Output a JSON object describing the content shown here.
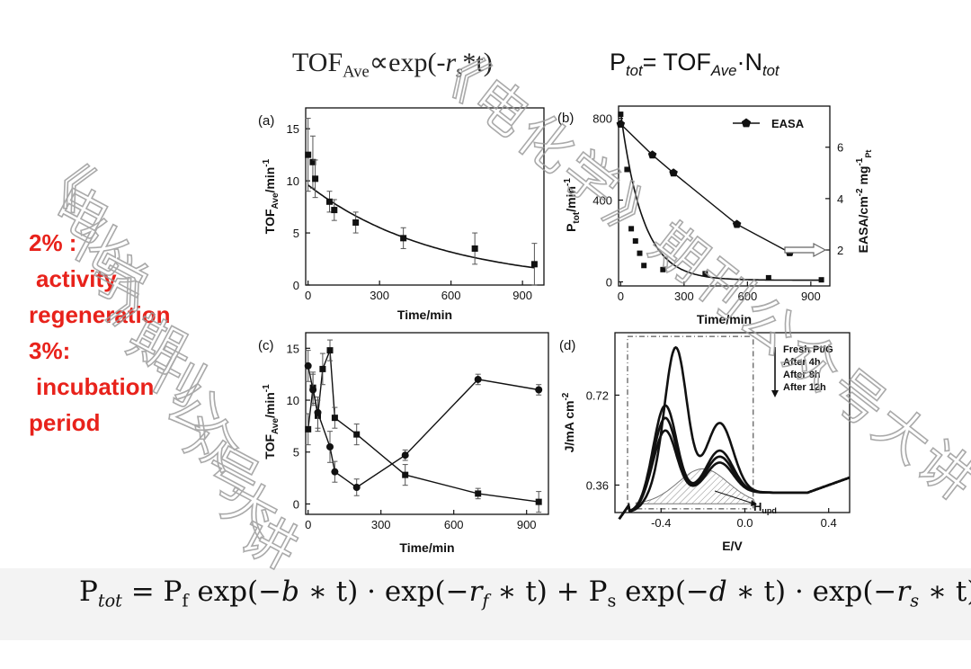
{
  "equations": {
    "top_left": {
      "base": "TOF",
      "sub": "Ave",
      "rest_a": "∝exp(-",
      "rs_r": "r",
      "rs_s": "s",
      "rest_b": "*t)"
    },
    "top_right": {
      "p": "P",
      "p_sub": "tot",
      "eq": "= TOF",
      "tof_sub": "Ave",
      "dot": "·N",
      "n_sub": "tot"
    },
    "bottom": "P_tot = P_f exp(−b * t) · exp(−r_f * t) + P_s exp(−d * t) · exp(−r_s * t)",
    "bottom_parts": {
      "p": "P",
      "p_sub": "tot",
      "eq": " = P",
      "pf_sub": "f",
      "exp1": " exp(−",
      "b": "b",
      "t1": " ∗ t) · exp(−",
      "rf": "r",
      "rf_sub": "f",
      "t2": " ∗ t) + P",
      "ps_sub": "s",
      "exp3": " exp(−",
      "d": "d",
      "t3": " ∗ t) · exp(−",
      "rs": "r",
      "rs_sub": "s",
      "t4": " ∗ t)"
    }
  },
  "side_notes": {
    "line1": "2% :",
    "line2": "activity",
    "line3": "regeneration",
    "line4": "3%:",
    "line5": "incubation",
    "line6": "period"
  },
  "watermark": {
    "text": "《电化学》期刊公众号大讲堂"
  },
  "chart_data": [
    {
      "panel": "(a)",
      "type": "scatter",
      "xlabel": "Time/min",
      "ylabel": "TOF",
      "ylabel_sub": "Ave",
      "ylabel_tail": "/min",
      "ylabel_sup": "-1",
      "xlim": [
        -10,
        990
      ],
      "ylim": [
        0,
        17
      ],
      "xticks": [
        0,
        300,
        600,
        900
      ],
      "yticks": [
        0,
        5,
        10,
        15
      ],
      "points": [
        {
          "x": 0,
          "y": 12.5,
          "err": 3.5
        },
        {
          "x": 20,
          "y": 11.8,
          "err": 2.5
        },
        {
          "x": 30,
          "y": 10.2,
          "err": 1.8
        },
        {
          "x": 90,
          "y": 8.0,
          "err": 1.0
        },
        {
          "x": 110,
          "y": 7.2,
          "err": 1.0
        },
        {
          "x": 200,
          "y": 6.0,
          "err": 1.0
        },
        {
          "x": 400,
          "y": 4.5,
          "err": 1.0
        },
        {
          "x": 700,
          "y": 3.5,
          "err": 1.5
        },
        {
          "x": 950,
          "y": 2.0,
          "err": 2.0
        }
      ],
      "fit": {
        "a": 9.6,
        "rate": 0.00185
      }
    },
    {
      "panel": "(b)",
      "type": "line",
      "xlabel": "Time/min",
      "ylabel": "P",
      "ylabel_sub": "tot",
      "ylabel_tail": "/min",
      "ylabel_sup": "-1",
      "y2label": "EASA/cm",
      "y2label_sup": "-2",
      "y2label_mid": " mg",
      "y2label_sup2": "-1",
      "y2label_sub": "Pt",
      "xlim": [
        -10,
        990
      ],
      "ylim": [
        -20,
        860
      ],
      "y2lim": [
        0.6,
        7.6
      ],
      "xticks": [
        0,
        300,
        600,
        900
      ],
      "yticks": [
        0,
        400,
        800
      ],
      "y2ticks": [
        2,
        4,
        6
      ],
      "series": [
        {
          "name": "P_tot",
          "marker": "square",
          "x": [
            0,
            30,
            50,
            70,
            90,
            110,
            200,
            400,
            700,
            950
          ],
          "y": [
            820,
            550,
            260,
            200,
            140,
            80,
            60,
            40,
            20,
            10
          ]
        },
        {
          "name": "EASA",
          "marker": "pentagon",
          "x": [
            0,
            150,
            250,
            550,
            800
          ],
          "y": [
            6.9,
            5.7,
            5.0,
            3.0,
            1.9
          ]
        }
      ],
      "fit": {
        "a": 820,
        "rate": 0.0095
      },
      "legend": "EASA"
    },
    {
      "panel": "(c)",
      "type": "line",
      "xlabel": "Time/min",
      "ylabel": "TOF",
      "ylabel_sub": "Ave",
      "ylabel_tail": "/min",
      "ylabel_sup": "-1",
      "xlim": [
        -10,
        990
      ],
      "ylim": [
        -1,
        16.5
      ],
      "xticks": [
        0,
        300,
        600,
        900
      ],
      "yticks": [
        0,
        5,
        10,
        15
      ],
      "series": [
        {
          "name": "squares",
          "marker": "square",
          "x": [
            0,
            20,
            40,
            60,
            90,
            110,
            200,
            400,
            700,
            950
          ],
          "y": [
            7.2,
            11.2,
            8.5,
            13.0,
            14.8,
            8.3,
            6.7,
            2.8,
            1.0,
            0.2
          ],
          "err": [
            1.5,
            1.5,
            1.5,
            1.5,
            1.0,
            1.0,
            1.0,
            1.0,
            0.5,
            1.0
          ]
        },
        {
          "name": "circles",
          "marker": "circle",
          "x": [
            0,
            20,
            40,
            90,
            110,
            200,
            400,
            700,
            950
          ],
          "y": [
            13.3,
            11.0,
            8.8,
            5.5,
            3.1,
            1.6,
            4.7,
            12.0,
            11.0
          ],
          "err": [
            1.5,
            1.5,
            1.5,
            1.5,
            1.0,
            0.8,
            0.5,
            0.5,
            0.5
          ]
        }
      ]
    },
    {
      "panel": "(d)",
      "type": "line",
      "xlabel": "E/V",
      "ylabel": "J/mA cm",
      "ylabel_sup": "-2",
      "xlim": [
        -0.62,
        0.5
      ],
      "ylim": [
        0.25,
        0.97
      ],
      "xticks": [
        -0.4,
        0.0,
        0.4
      ],
      "yticks": [
        0.36,
        0.72
      ],
      "legend": [
        "Fresh Pt/G",
        "After 4h",
        "After 8h",
        "After 12h"
      ],
      "annotation": "H",
      "annotation_sub": "upd",
      "series": [
        {
          "name": "Fresh Pt/G",
          "peak_e": -0.33,
          "peak_j": 0.91
        },
        {
          "name": "After 4h",
          "peak_e": -0.38,
          "peak_j": 0.68
        },
        {
          "name": "After 8h",
          "peak_e": -0.38,
          "peak_j": 0.63
        },
        {
          "name": "After 12h",
          "peak_e": -0.38,
          "peak_j": 0.58
        }
      ]
    }
  ]
}
